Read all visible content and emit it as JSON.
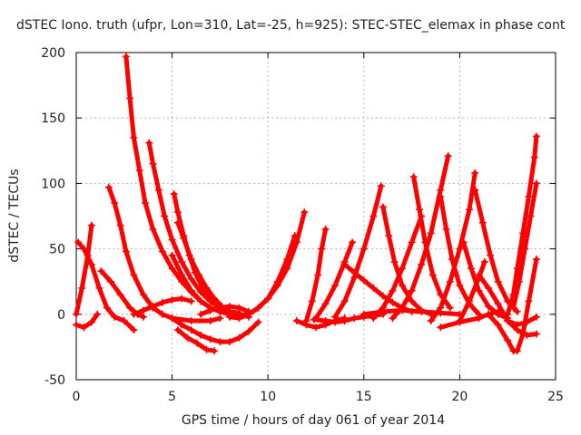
{
  "chart_data": {
    "type": "scatter",
    "title": "dSTEC Iono. truth (ufpr, Lon=310, Lat=-25, h=925): STEC-STEC_elemax in phase cont",
    "xlabel": "GPS time / hours of day 061 of year 2014",
    "ylabel": "dSTEC  / TECUs",
    "xlim": [
      0,
      25
    ],
    "ylim": [
      -50,
      200
    ],
    "xticks": [
      0,
      5,
      10,
      15,
      20,
      25
    ],
    "yticks": [
      -50,
      0,
      50,
      100,
      150,
      200
    ],
    "grid": true,
    "marker": "+",
    "color": "#ff0000",
    "series": [
      {
        "x": [
          0.0,
          0.3,
          0.6,
          0.8
        ],
        "y": [
          0,
          20,
          45,
          68
        ]
      },
      {
        "x": [
          0.0,
          0.4,
          0.8,
          1.1
        ],
        "y": [
          -8,
          -10,
          -6,
          0
        ]
      },
      {
        "x": [
          0.1,
          0.4,
          0.8,
          1.2,
          1.6,
          2.0,
          2.5,
          3.0
        ],
        "y": [
          55,
          50,
          38,
          20,
          5,
          -2,
          -5,
          -12
        ]
      },
      {
        "x": [
          1.7,
          2.0,
          2.3,
          2.6,
          3.0,
          3.5,
          4.0,
          4.5,
          5.0,
          6.0,
          7.0,
          7.5
        ],
        "y": [
          97,
          85,
          68,
          48,
          30,
          15,
          5,
          0,
          -3,
          -5,
          -5,
          -3
        ]
      },
      {
        "x": [
          1.3,
          1.8,
          2.3,
          2.8,
          3.2,
          3.5
        ],
        "y": [
          33,
          25,
          15,
          5,
          0,
          -2
        ]
      },
      {
        "x": [
          2.6,
          2.8,
          3.0,
          3.3,
          3.6,
          4.0,
          4.5,
          5.0,
          5.5,
          6.0,
          6.5,
          7.0,
          7.5,
          8.0,
          8.5,
          9.0
        ],
        "y": [
          197,
          165,
          135,
          110,
          85,
          65,
          48,
          35,
          25,
          17,
          10,
          5,
          2,
          0,
          -1,
          0
        ]
      },
      {
        "x": [
          3.8,
          4.0,
          4.3,
          4.6,
          5.0,
          5.5,
          6.0,
          6.5,
          7.0,
          7.5,
          8.0,
          8.5
        ],
        "y": [
          131,
          115,
          95,
          75,
          57,
          40,
          27,
          17,
          10,
          5,
          2,
          1
        ]
      },
      {
        "x": [
          3.0,
          3.5,
          4.0,
          4.5,
          5.0,
          5.5,
          6.0
        ],
        "y": [
          0,
          3,
          6,
          9,
          11,
          12,
          10
        ]
      },
      {
        "x": [
          5.1,
          5.3,
          5.6,
          5.9,
          6.2,
          6.6,
          7.0,
          7.5,
          8.0,
          8.5
        ],
        "y": [
          92,
          78,
          60,
          45,
          32,
          20,
          12,
          6,
          2,
          0
        ]
      },
      {
        "x": [
          5.3,
          5.6,
          6.0,
          6.4,
          6.8,
          7.2,
          7.6,
          8.0,
          8.5,
          9.0
        ],
        "y": [
          70,
          58,
          42,
          30,
          20,
          12,
          6,
          2,
          0,
          -2
        ]
      },
      {
        "x": [
          5.3,
          5.8,
          6.3,
          6.8,
          7.2
        ],
        "y": [
          -12,
          -18,
          -22,
          -27,
          -28
        ]
      },
      {
        "x": [
          5.0,
          5.5,
          6.0,
          6.5,
          7.0,
          7.5,
          8.0,
          8.5,
          9.0,
          9.5
        ],
        "y": [
          -3,
          -8,
          -12,
          -16,
          -19,
          -21,
          -21,
          -18,
          -13,
          -6
        ]
      },
      {
        "x": [
          5.0,
          5.5,
          6.0,
          6.5,
          7.0,
          7.5,
          8.0,
          8.5
        ],
        "y": [
          45,
          30,
          18,
          10,
          5,
          2,
          0,
          -1
        ]
      },
      {
        "x": [
          6.5,
          7.0,
          7.5,
          8.0,
          8.5,
          9.0
        ],
        "y": [
          0,
          3,
          5,
          6,
          5,
          2
        ]
      },
      {
        "x": [
          8.0,
          8.5,
          9.0,
          9.5,
          10.0,
          10.5,
          11.0,
          11.5,
          11.9
        ],
        "y": [
          -2,
          -3,
          0,
          5,
          12,
          22,
          35,
          55,
          78
        ]
      },
      {
        "x": [
          9.0,
          9.5,
          10.0,
          10.5,
          11.0,
          11.4
        ],
        "y": [
          0,
          5,
          12,
          25,
          42,
          60
        ]
      },
      {
        "x": [
          11.5,
          12.0,
          12.5,
          13.0,
          13.5,
          14.0
        ],
        "y": [
          -5,
          -8,
          -10,
          -8,
          -5,
          -3
        ]
      },
      {
        "x": [
          12.0,
          12.3,
          12.6,
          12.8,
          13.0
        ],
        "y": [
          -5,
          10,
          30,
          50,
          65
        ]
      },
      {
        "x": [
          12.5,
          13.0,
          13.5,
          14.0,
          14.4
        ],
        "y": [
          -3,
          8,
          22,
          40,
          55
        ]
      },
      {
        "x": [
          12.4,
          13.0,
          13.5,
          14.0,
          14.5,
          15.0,
          15.5,
          16.0
        ],
        "y": [
          -4,
          -5,
          -6,
          -5,
          -3,
          -2,
          -1,
          0
        ]
      },
      {
        "x": [
          14.0,
          14.5,
          15.0,
          15.5,
          16.0,
          16.5,
          17.0,
          17.5
        ],
        "y": [
          38,
          32,
          26,
          20,
          14,
          9,
          5,
          2
        ]
      },
      {
        "x": [
          13.5,
          14.0,
          14.5,
          15.0,
          15.5,
          15.9
        ],
        "y": [
          -2,
          10,
          28,
          50,
          75,
          98
        ]
      },
      {
        "x": [
          16.0,
          16.3,
          16.6,
          17.0,
          17.5,
          18.0,
          18.5
        ],
        "y": [
          82,
          60,
          40,
          22,
          10,
          3,
          0
        ]
      },
      {
        "x": [
          15.0,
          16.0,
          17.0,
          18.0,
          19.0,
          20.0
        ],
        "y": [
          0,
          2,
          3,
          2,
          1,
          0
        ]
      },
      {
        "x": [
          15.5,
          16.0,
          16.5,
          17.0,
          17.5,
          18.0
        ],
        "y": [
          -3,
          5,
          18,
          35,
          55,
          75
        ]
      },
      {
        "x": [
          17.6,
          17.9,
          18.2,
          18.6,
          19.0,
          19.5
        ],
        "y": [
          105,
          80,
          55,
          30,
          15,
          5
        ]
      },
      {
        "x": [
          16.5,
          17.0,
          17.5,
          18.0,
          18.5,
          19.0,
          19.4
        ],
        "y": [
          -3,
          5,
          18,
          38,
          62,
          95,
          121
        ]
      },
      {
        "x": [
          19.0,
          19.3,
          19.6,
          20.0,
          20.5,
          21.0
        ],
        "y": [
          90,
          65,
          42,
          22,
          8,
          0
        ]
      },
      {
        "x": [
          18.5,
          19.0,
          19.5,
          20.0,
          20.5,
          20.8
        ],
        "y": [
          -5,
          5,
          25,
          50,
          80,
          108
        ]
      },
      {
        "x": [
          20.2,
          20.6,
          21.0,
          21.5,
          22.0,
          22.5
        ],
        "y": [
          55,
          35,
          18,
          6,
          0,
          -3
        ]
      },
      {
        "x": [
          20.8,
          21.2,
          21.6,
          22.0,
          22.5,
          23.0
        ],
        "y": [
          95,
          70,
          45,
          25,
          10,
          2
        ]
      },
      {
        "x": [
          20.0,
          20.5,
          21.0,
          21.3
        ],
        "y": [
          -5,
          10,
          28,
          40
        ]
      },
      {
        "x": [
          21.0,
          21.5,
          22.0,
          22.5,
          23.0,
          23.5,
          24.0
        ],
        "y": [
          30,
          20,
          8,
          -5,
          -12,
          -16,
          -15
        ]
      },
      {
        "x": [
          19.0,
          20.0,
          21.0,
          21.5,
          22.0
        ],
        "y": [
          -10,
          -6,
          -3,
          0,
          2
        ]
      },
      {
        "x": [
          21.5,
          22.0,
          22.5,
          22.8,
          23.0,
          23.3,
          23.6,
          24.0
        ],
        "y": [
          0,
          -8,
          -20,
          -28,
          -28,
          -15,
          10,
          42
        ]
      },
      {
        "x": [
          22.5,
          22.8,
          23.0,
          23.3,
          23.6,
          23.9,
          24.0
        ],
        "y": [
          0,
          15,
          35,
          62,
          90,
          120,
          136
        ]
      },
      {
        "x": [
          22.8,
          23.1,
          23.4,
          23.7,
          24.0
        ],
        "y": [
          5,
          25,
          50,
          75,
          100
        ]
      },
      {
        "x": [
          22.5,
          23.0,
          23.5,
          24.0
        ],
        "y": [
          -5,
          -8,
          -6,
          -2
        ]
      }
    ]
  }
}
